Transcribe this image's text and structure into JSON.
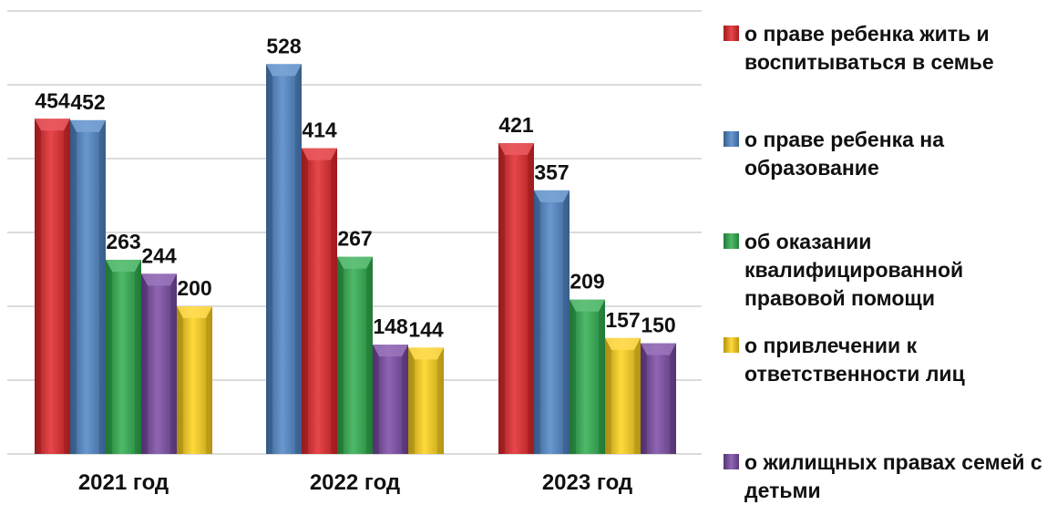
{
  "chart_data": {
    "type": "bar",
    "categories": [
      "2021 год",
      "2022 год",
      "2023 год"
    ],
    "series": [
      {
        "name": "о праве ребенка жить и воспитываться в семье",
        "color": "#e3262b",
        "values": [
          454,
          414,
          421
        ]
      },
      {
        "name": "о праве ребенка на образование",
        "color": "#4f86c8",
        "values": [
          452,
          528,
          357
        ]
      },
      {
        "name": "об оказании квалифицированной правовой помощи",
        "color": "#2fae4f",
        "values": [
          263,
          267,
          209
        ]
      },
      {
        "name": "о привлечении к ответственности лиц",
        "color": "#ffd21a",
        "values": [
          200,
          144,
          157
        ]
      },
      {
        "name": "о жилищных правах семей с детьми",
        "color": "#7b4aa6",
        "values": [
          244,
          148,
          150
        ]
      }
    ],
    "bar_order": [
      [
        "о праве ребенка жить и воспитываться в семье",
        "о праве ребенка на образование",
        "об оказании квалифицированной правовой помощи",
        "о жилищных правах семей с детьми",
        "о привлечении к ответственности лиц"
      ],
      [
        "о праве ребенка на образование",
        "о праве ребенка жить и воспитываться в семье",
        "об оказании квалифицированной правовой помощи",
        "о жилищных правах семей с детьми",
        "о привлечении к ответственности лиц"
      ],
      [
        "о праве ребенка жить и воспитываться в семье",
        "о праве ребенка на образование",
        "об оказании квалифицированной правовой помощи",
        "о привлечении к ответственности лиц",
        "о жилищных правах семей с детьми"
      ]
    ],
    "ylim": [
      0,
      600
    ],
    "y_gridline_step": 100,
    "y_tick_labels_shown": false,
    "grid": true,
    "legend_position": "right",
    "data_labels": true,
    "title": "",
    "xlabel": "",
    "ylabel": ""
  }
}
